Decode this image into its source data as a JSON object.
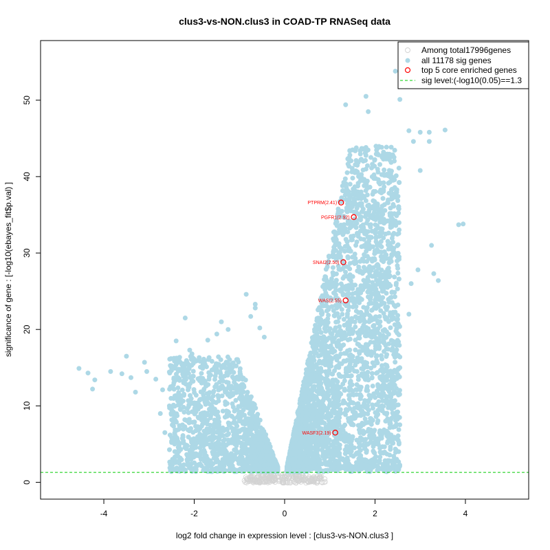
{
  "chart_data": {
    "type": "scatter",
    "title": "clus3-vs-NON.clus3 in COAD-TP RNASeq data",
    "xlabel": "log2 fold change in expression level : [clus3-vs-NON.clus3 ]",
    "ylabel": "significance of gene : [-log10(ebayes_fit$p.val) ]",
    "xlim": [
      -5.4,
      5.4
    ],
    "ylim": [
      -2.2,
      57.8
    ],
    "x_ticks": [
      -4,
      -2,
      0,
      2,
      4
    ],
    "y_ticks": [
      0,
      10,
      20,
      30,
      40,
      50
    ],
    "sig_level": 1.3,
    "legend": {
      "position": "top-right",
      "entries": [
        {
          "label": "Among total17996genes",
          "symbol": "open-circle",
          "color": "#d3d3d3"
        },
        {
          "label": "all 11178 sig genes",
          "symbol": "filled-circle",
          "color": "#add8e6"
        },
        {
          "label": "top 5 core enriched genes",
          "symbol": "open-circle",
          "color": "#ff0000"
        },
        {
          "label": "sig level:(-log10(0.05)==1.3",
          "symbol": "dashed-line",
          "color": "#00cc00"
        }
      ]
    },
    "colors": {
      "all_genes": "#d3d3d3",
      "sig_genes": "#add8e6",
      "top_genes": "#ff0000",
      "sig_line": "#00cc00"
    },
    "top_genes": [
      {
        "label": "PTPRM(2.41)",
        "x": 1.25,
        "y": 36.6
      },
      {
        "label": "PGFR1(2.92)",
        "x": 1.53,
        "y": 34.7
      },
      {
        "label": "SNAI2(2.50)",
        "x": 1.3,
        "y": 28.8
      },
      {
        "label": "WAS(2.55)",
        "x": 1.35,
        "y": 23.8
      },
      {
        "label": "WASF3(2.19)",
        "x": 1.12,
        "y": 6.5
      }
    ],
    "sig_outliers": [
      {
        "x": -4.55,
        "y": 14.9
      },
      {
        "x": -4.35,
        "y": 14.3
      },
      {
        "x": -4.2,
        "y": 13.4
      },
      {
        "x": -4.25,
        "y": 12.2
      },
      {
        "x": -3.85,
        "y": 14.5
      },
      {
        "x": -3.6,
        "y": 14.2
      },
      {
        "x": -3.5,
        "y": 16.5
      },
      {
        "x": -3.4,
        "y": 13.7
      },
      {
        "x": -3.3,
        "y": 11.8
      },
      {
        "x": -3.1,
        "y": 15.7
      },
      {
        "x": -3.05,
        "y": 14.5
      },
      {
        "x": -2.85,
        "y": 13.5
      },
      {
        "x": -2.7,
        "y": 12.1
      },
      {
        "x": -2.65,
        "y": 6.5
      },
      {
        "x": -2.55,
        "y": 10.0
      },
      {
        "x": -2.75,
        "y": 9.0
      },
      {
        "x": -2.4,
        "y": 18.5
      },
      {
        "x": -2.2,
        "y": 21.5
      },
      {
        "x": -2.1,
        "y": 17.3
      },
      {
        "x": -1.95,
        "y": 15.9
      },
      {
        "x": -2.3,
        "y": 4.3
      },
      {
        "x": -2.05,
        "y": 16.8
      },
      {
        "x": -1.7,
        "y": 18.6
      },
      {
        "x": -1.5,
        "y": 19.4
      },
      {
        "x": -1.4,
        "y": 21.0
      },
      {
        "x": -1.25,
        "y": 20.0
      },
      {
        "x": -0.85,
        "y": 24.6
      },
      {
        "x": -0.65,
        "y": 23.3
      },
      {
        "x": -0.65,
        "y": 22.8
      },
      {
        "x": -0.75,
        "y": 21.7
      },
      {
        "x": -0.55,
        "y": 20.2
      },
      {
        "x": -0.45,
        "y": 19.0
      },
      {
        "x": 2.45,
        "y": 53.8
      },
      {
        "x": 2.55,
        "y": 50.1
      },
      {
        "x": 1.8,
        "y": 50.5
      },
      {
        "x": 1.35,
        "y": 49.4
      },
      {
        "x": 1.85,
        "y": 48.5
      },
      {
        "x": 2.75,
        "y": 46.0
      },
      {
        "x": 3.0,
        "y": 45.8
      },
      {
        "x": 3.2,
        "y": 45.8
      },
      {
        "x": 3.55,
        "y": 46.1
      },
      {
        "x": 2.85,
        "y": 44.6
      },
      {
        "x": 3.2,
        "y": 44.6
      },
      {
        "x": 3.0,
        "y": 40.8
      },
      {
        "x": 3.85,
        "y": 33.7
      },
      {
        "x": 3.95,
        "y": 33.8
      },
      {
        "x": 3.25,
        "y": 31.0
      },
      {
        "x": 3.3,
        "y": 27.3
      },
      {
        "x": 3.4,
        "y": 26.4
      },
      {
        "x": 2.95,
        "y": 27.8
      },
      {
        "x": 2.8,
        "y": 26.0
      },
      {
        "x": 2.55,
        "y": 15.0
      },
      {
        "x": 2.55,
        "y": 16.4
      },
      {
        "x": 2.75,
        "y": 22.0
      },
      {
        "x": 2.45,
        "y": 23.0
      }
    ]
  }
}
